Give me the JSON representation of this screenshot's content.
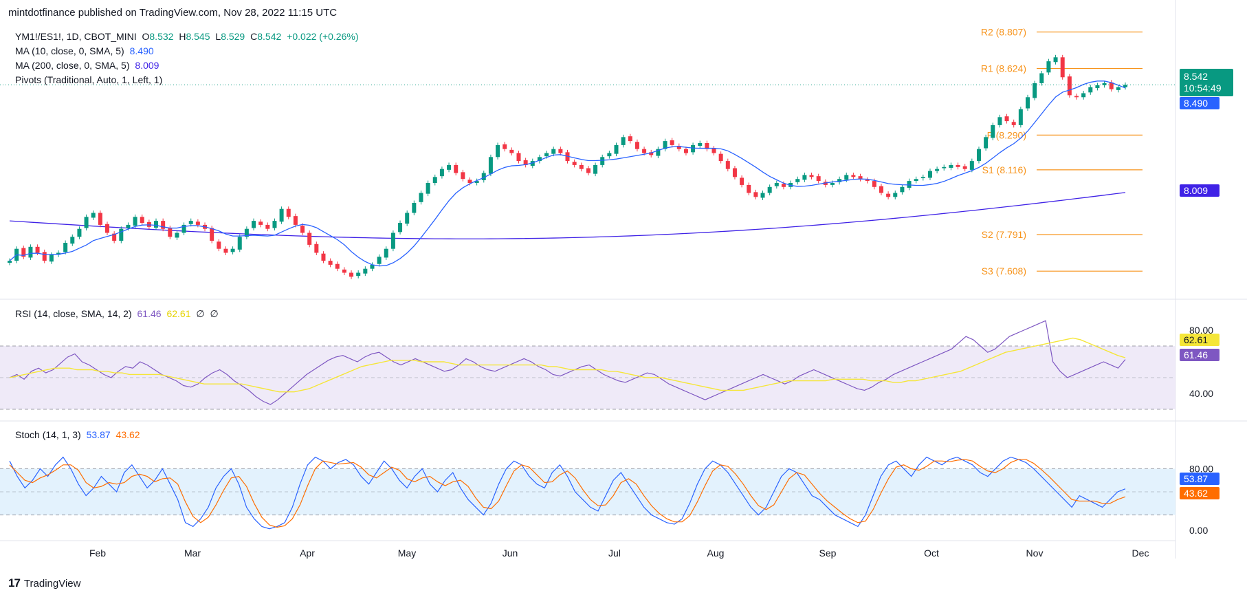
{
  "header": {
    "published_text": "mintdotfinance published on TradingView.com, Nov 28, 2022 11:15 UTC"
  },
  "footer": {
    "brand": "TradingView",
    "logo_glyph": "17"
  },
  "colors": {
    "up": "#089981",
    "down": "#F23645",
    "ma10": "#2962FF",
    "ma200": "#3F22E6",
    "pivot": "#F7931A",
    "rsi": "#7E57C2",
    "rsi_ma": "#F5E638",
    "stoch_k": "#2962FF",
    "stoch_d": "#FF6D00",
    "rsi_band": "#EFEAF8",
    "stoch_band": "#E3F2FD"
  },
  "legend": {
    "symbol": {
      "name": "YM1!/ES1!, 1D, CBOT_MINI",
      "o_label": "O",
      "o": "8.532",
      "h_label": "H",
      "h": "8.545",
      "l_label": "L",
      "l": "8.529",
      "c_label": "C",
      "c": "8.542",
      "change": "+0.022 (+0.26%)"
    },
    "ma10": {
      "name": "MA (10, close, 0, SMA, 5)",
      "value": "8.490"
    },
    "ma200": {
      "name": "MA (200, close, 0, SMA, 5)",
      "value": "8.009"
    },
    "pivots": {
      "name": "Pivots (Traditional, Auto, 1, Left, 1)"
    }
  },
  "price_badges": {
    "last": "8.542",
    "countdown": "10:54:49",
    "ma10": "8.490",
    "ma200": "8.009"
  },
  "rsi_panel": {
    "name": "RSI (14, close, SMA, 14, 2)",
    "rsi_value": "61.46",
    "ma_value": "62.61",
    "extra1": "∅",
    "extra2": "∅",
    "ticks": [
      "80.00",
      "40.00"
    ]
  },
  "stoch_panel": {
    "name": "Stoch (14, 1, 3)",
    "k_value": "53.87",
    "d_value": "43.62",
    "ticks": [
      "80.00",
      "0.00"
    ]
  },
  "chart_data": {
    "type": "candlestick",
    "title": "YM1!/ES1!, 1D, CBOT_MINI",
    "x_axis": {
      "months": [
        "Feb",
        "Mar",
        "Apr",
        "May",
        "Jun",
        "Jul",
        "Aug",
        "Sep",
        "Oct",
        "Nov",
        "Dec"
      ]
    },
    "price_range": [
      7.45,
      8.95
    ],
    "pivots": [
      {
        "label": "R2 (8.807)",
        "value": 8.807
      },
      {
        "label": "R1 (8.624)",
        "value": 8.624
      },
      {
        "label": "P (8.290)",
        "value": 8.29
      },
      {
        "label": "S1 (8.116)",
        "value": 8.116
      },
      {
        "label": "S2 (7.791)",
        "value": 7.791
      },
      {
        "label": "S3 (7.608)",
        "value": 7.608
      }
    ],
    "close_series": [
      7.66,
      7.72,
      7.68,
      7.73,
      7.7,
      7.66,
      7.69,
      7.7,
      7.75,
      7.78,
      7.82,
      7.88,
      7.9,
      7.84,
      7.8,
      7.76,
      7.82,
      7.84,
      7.88,
      7.85,
      7.83,
      7.86,
      7.82,
      7.78,
      7.8,
      7.84,
      7.86,
      7.84,
      7.82,
      7.76,
      7.72,
      7.7,
      7.72,
      7.78,
      7.82,
      7.86,
      7.84,
      7.82,
      7.86,
      7.92,
      7.88,
      7.84,
      7.8,
      7.74,
      7.7,
      7.66,
      7.64,
      7.62,
      7.6,
      7.58,
      7.6,
      7.62,
      7.64,
      7.68,
      7.72,
      7.8,
      7.85,
      7.9,
      7.95,
      8.0,
      8.05,
      8.08,
      8.12,
      8.14,
      8.1,
      8.07,
      8.05,
      8.06,
      8.1,
      8.18,
      8.24,
      8.22,
      8.2,
      8.16,
      8.14,
      8.16,
      8.18,
      8.2,
      8.22,
      8.2,
      8.16,
      8.14,
      8.12,
      8.1,
      8.14,
      8.18,
      8.2,
      8.24,
      8.28,
      8.26,
      8.22,
      8.2,
      8.19,
      8.22,
      8.26,
      8.24,
      8.22,
      8.2,
      8.24,
      8.25,
      8.22,
      8.2,
      8.16,
      8.12,
      8.08,
      8.04,
      8.0,
      7.98,
      8.0,
      8.03,
      8.05,
      8.03,
      8.05,
      8.07,
      8.09,
      8.08,
      8.06,
      8.04,
      8.05,
      8.07,
      8.09,
      8.08,
      8.07,
      8.06,
      8.03,
      8.0,
      7.98,
      8.0,
      8.03,
      8.06,
      8.07,
      8.08,
      8.11,
      8.12,
      8.13,
      8.14,
      8.13,
      8.12,
      8.16,
      8.22,
      8.28,
      8.34,
      8.38,
      8.36,
      8.34,
      8.42,
      8.48,
      8.55,
      8.6,
      8.66,
      8.68,
      8.58,
      8.49,
      8.48,
      8.5,
      8.53,
      8.54,
      8.55,
      8.52,
      8.53,
      8.542
    ],
    "rsi_series": [
      50,
      52,
      49,
      54,
      56,
      53,
      55,
      59,
      63,
      65,
      60,
      58,
      55,
      52,
      50,
      54,
      57,
      56,
      60,
      58,
      55,
      52,
      50,
      48,
      45,
      44,
      46,
      50,
      53,
      55,
      52,
      48,
      45,
      42,
      38,
      35,
      33,
      36,
      40,
      44,
      48,
      52,
      55,
      58,
      61,
      63,
      64,
      62,
      60,
      63,
      65,
      66,
      63,
      60,
      58,
      60,
      62,
      60,
      58,
      56,
      54,
      55,
      58,
      62,
      60,
      57,
      55,
      54,
      56,
      58,
      60,
      62,
      60,
      57,
      55,
      52,
      51,
      53,
      55,
      57,
      58,
      55,
      52,
      50,
      48,
      47,
      49,
      51,
      53,
      52,
      49,
      46,
      44,
      42,
      40,
      38,
      36,
      38,
      40,
      42,
      44,
      46,
      48,
      50,
      52,
      50,
      48,
      46,
      48,
      51,
      53,
      55,
      53,
      51,
      49,
      47,
      45,
      43,
      42,
      44,
      47,
      49,
      52,
      54,
      56,
      58,
      60,
      62,
      64,
      66,
      68,
      72,
      76,
      74,
      70,
      66,
      68,
      72,
      76,
      78,
      80,
      82,
      84,
      86,
      60,
      54,
      50,
      52,
      54,
      56,
      58,
      60,
      58,
      56,
      61.46
    ],
    "rsi_ma_series": [
      50,
      51,
      52,
      53,
      54,
      55,
      56,
      56,
      56,
      55,
      55,
      55,
      54,
      54,
      53,
      53,
      52,
      52,
      52,
      52,
      52,
      51,
      50,
      49,
      48,
      47,
      46,
      46,
      46,
      46,
      46,
      46,
      45,
      44,
      43,
      42,
      41,
      41,
      41,
      42,
      43,
      45,
      47,
      49,
      51,
      53,
      55,
      57,
      58,
      59,
      60,
      61,
      61,
      61,
      61,
      60,
      60,
      60,
      60,
      59,
      58,
      58,
      58,
      58,
      58,
      58,
      58,
      58,
      58,
      58,
      58,
      58,
      57,
      57,
      56,
      55,
      55,
      55,
      55,
      55,
      54,
      54,
      53,
      52,
      51,
      50,
      50,
      50,
      49,
      48,
      47,
      46,
      45,
      44,
      43,
      42,
      42,
      42,
      42,
      43,
      44,
      45,
      46,
      47,
      48,
      48,
      48,
      48,
      48,
      48,
      49,
      49,
      49,
      49,
      49,
      48,
      48,
      48,
      47,
      47,
      48,
      48,
      49,
      50,
      51,
      52,
      53,
      54,
      56,
      58,
      60,
      62,
      64,
      66,
      67,
      68,
      69,
      70,
      71,
      72,
      73,
      74,
      75,
      74,
      72,
      70,
      68,
      66,
      64,
      62.61
    ],
    "stoch_k_series": [
      90,
      70,
      55,
      65,
      80,
      70,
      85,
      95,
      80,
      60,
      45,
      55,
      70,
      60,
      50,
      75,
      85,
      70,
      55,
      65,
      80,
      60,
      40,
      10,
      5,
      15,
      30,
      55,
      70,
      80,
      60,
      30,
      15,
      5,
      2,
      5,
      10,
      30,
      60,
      85,
      95,
      90,
      80,
      88,
      92,
      85,
      70,
      60,
      75,
      90,
      80,
      65,
      55,
      70,
      80,
      60,
      50,
      65,
      75,
      55,
      40,
      30,
      20,
      35,
      60,
      80,
      90,
      85,
      70,
      60,
      55,
      75,
      85,
      70,
      50,
      40,
      30,
      25,
      45,
      65,
      75,
      60,
      45,
      30,
      20,
      15,
      10,
      8,
      15,
      35,
      60,
      80,
      90,
      85,
      75,
      60,
      45,
      30,
      20,
      30,
      50,
      70,
      80,
      75,
      60,
      45,
      40,
      30,
      20,
      15,
      10,
      5,
      20,
      45,
      70,
      85,
      90,
      80,
      70,
      85,
      95,
      90,
      85,
      92,
      95,
      90,
      85,
      75,
      70,
      80,
      90,
      95,
      92,
      88,
      80,
      70,
      60,
      50,
      40,
      30,
      45,
      40,
      35,
      30,
      40,
      50,
      53.87
    ],
    "stoch_d_series": [
      85,
      75,
      65,
      62,
      68,
      72,
      78,
      85,
      85,
      78,
      62,
      55,
      57,
      62,
      60,
      62,
      70,
      73,
      70,
      63,
      67,
      68,
      60,
      37,
      18,
      10,
      17,
      33,
      52,
      68,
      70,
      57,
      35,
      17,
      7,
      4,
      6,
      15,
      33,
      58,
      80,
      90,
      88,
      86,
      87,
      88,
      82,
      72,
      68,
      75,
      82,
      78,
      67,
      63,
      68,
      70,
      63,
      58,
      63,
      65,
      57,
      42,
      30,
      28,
      38,
      58,
      77,
      85,
      82,
      72,
      62,
      63,
      72,
      77,
      68,
      53,
      40,
      32,
      33,
      45,
      62,
      67,
      60,
      45,
      32,
      22,
      15,
      11,
      11,
      19,
      37,
      58,
      77,
      85,
      83,
      73,
      60,
      45,
      32,
      27,
      33,
      50,
      67,
      75,
      72,
      60,
      48,
      38,
      30,
      22,
      15,
      10,
      12,
      27,
      48,
      67,
      82,
      85,
      80,
      78,
      83,
      90,
      90,
      89,
      91,
      92,
      90,
      83,
      77,
      75,
      80,
      88,
      92,
      92,
      87,
      79,
      70,
      60,
      50,
      40,
      38,
      38,
      38,
      35,
      35,
      40,
      43.62
    ]
  }
}
